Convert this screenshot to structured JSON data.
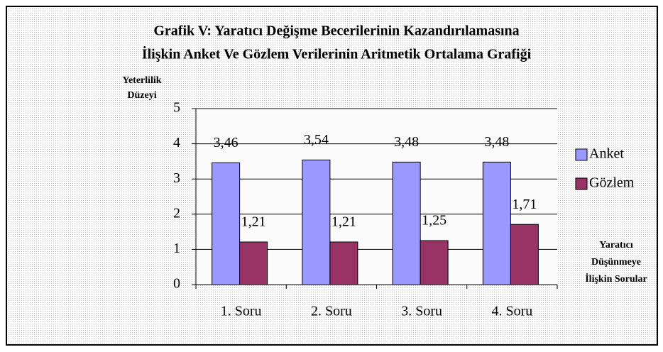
{
  "chart_data": {
    "type": "bar",
    "title": [
      "Grafik V: Yaratıcı Değişme Becerilerinin Kazandırılamasına",
      "İlişkin Anket Ve Gözlem Verilerinin Aritmetik Ortalama Grafiği"
    ],
    "y_label": [
      "Yeterlilik",
      "Düzeyi"
    ],
    "x_label": [
      "Yaratıcı",
      "Düşünmeye",
      "İlişkin Sorular"
    ],
    "categories": [
      "1. Soru",
      "2. Soru",
      "3. Soru",
      "4. Soru"
    ],
    "series": [
      {
        "name": "Anket",
        "color": "#9999ff",
        "values": [
          3.46,
          3.54,
          3.48,
          3.48
        ],
        "value_labels": [
          "3,46",
          "3,54",
          "3,48",
          "3,48"
        ]
      },
      {
        "name": "Gözlem",
        "color": "#993366",
        "values": [
          1.21,
          1.21,
          1.25,
          1.71
        ],
        "value_labels": [
          "1,21",
          "1,21",
          "1,25",
          "1,71"
        ]
      }
    ],
    "ylim": [
      0,
      5
    ],
    "yticks": [
      0,
      1,
      2,
      3,
      4,
      5
    ],
    "grid": true,
    "legend": "right"
  }
}
